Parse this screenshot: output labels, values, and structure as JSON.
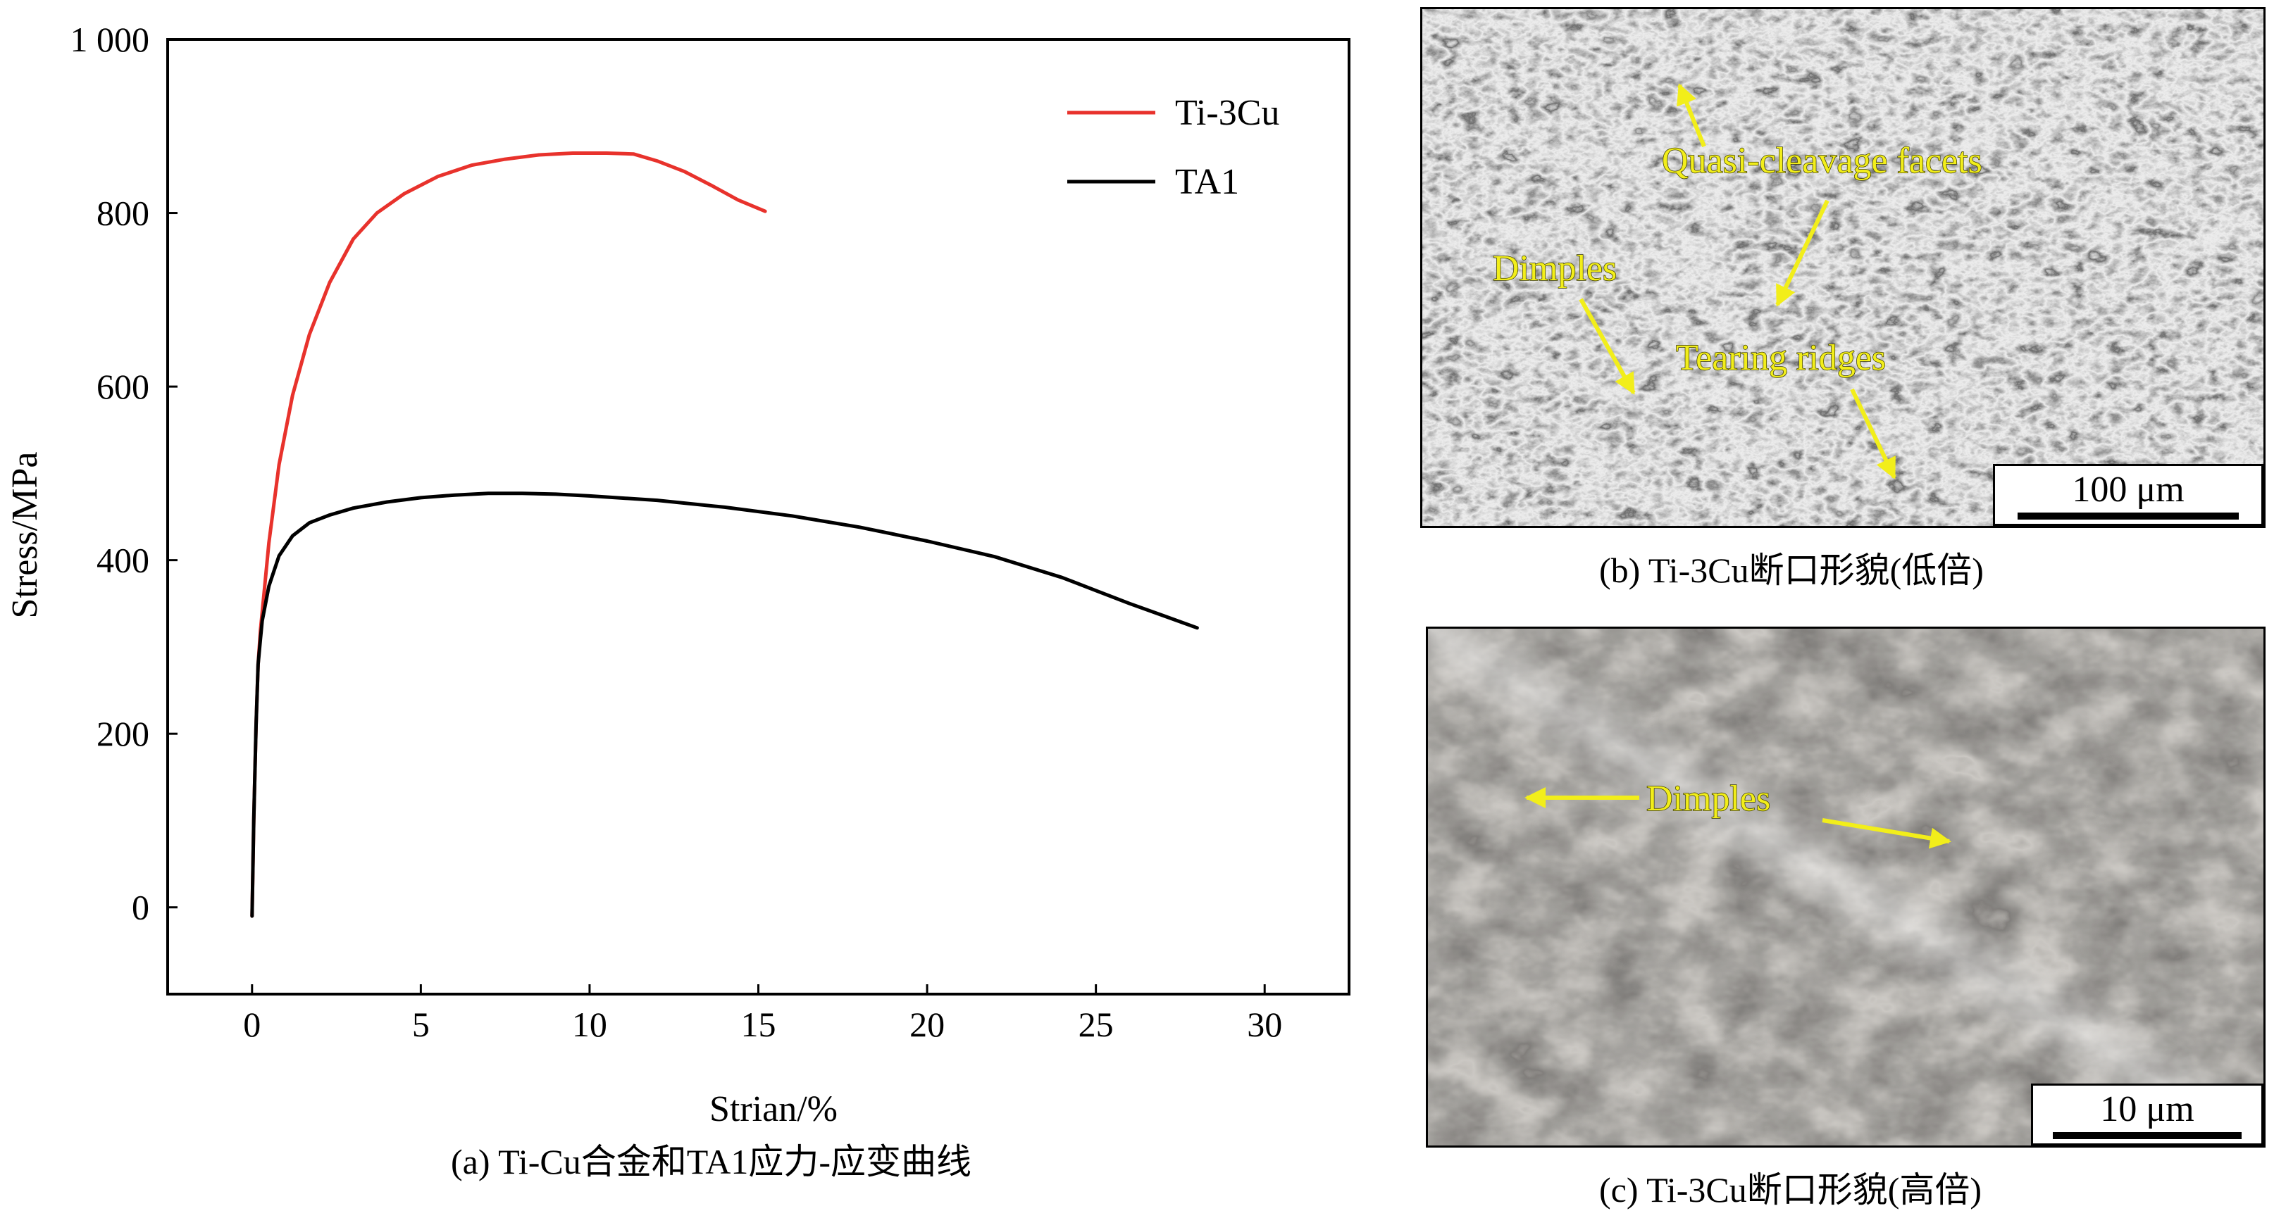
{
  "chart_data": {
    "type": "line",
    "title": "",
    "xlabel": "Strian/%",
    "ylabel": "Stress/MPa",
    "xlim": [
      -2.5,
      32.5
    ],
    "ylim": [
      -100,
      1000
    ],
    "xticks": [
      0,
      5,
      10,
      15,
      20,
      25,
      30
    ],
    "yticks": [
      0,
      200,
      400,
      600,
      800,
      1000
    ],
    "ytick_labels": [
      "0",
      "200",
      "400",
      "600",
      "800",
      "1 000"
    ],
    "grid": false,
    "legend_position": "top-right",
    "series": [
      {
        "name": "Ti-3Cu",
        "color": "#e8322c",
        "x": [
          0,
          0.05,
          0.12,
          0.18,
          0.25,
          0.3,
          0.5,
          0.8,
          1.2,
          1.7,
          2.3,
          3.0,
          3.7,
          4.5,
          5.5,
          6.5,
          7.5,
          8.5,
          9.5,
          10.5,
          11.3,
          12.0,
          12.8,
          13.6,
          14.4,
          15.2
        ],
        "y": [
          -10,
          100,
          210,
          280,
          320,
          340,
          420,
          510,
          590,
          660,
          720,
          770,
          800,
          822,
          842,
          855,
          862,
          867,
          869,
          869,
          868,
          860,
          848,
          832,
          815,
          802
        ]
      },
      {
        "name": "TA1",
        "color": "#000000",
        "x": [
          0,
          0.05,
          0.12,
          0.18,
          0.25,
          0.3,
          0.5,
          0.8,
          1.2,
          1.7,
          2.3,
          3.0,
          4.0,
          5.0,
          6.0,
          7.0,
          8.0,
          9.0,
          10.0,
          12.0,
          14.0,
          16.0,
          18.0,
          20.0,
          22.0,
          23.0,
          24.0,
          25.0,
          26.0,
          27.0,
          28.0
        ],
        "y": [
          -10,
          100,
          210,
          280,
          310,
          330,
          370,
          405,
          428,
          443,
          452,
          460,
          467,
          472,
          475,
          477,
          477,
          476,
          474,
          469,
          461,
          451,
          438,
          422,
          404,
          392,
          380,
          365,
          350,
          336,
          322
        ]
      }
    ]
  },
  "captions": {
    "a": "(a) Ti-Cu合金和TA1应力-应变曲线",
    "b": "(b) Ti-3Cu断口形貌(低倍)",
    "c": "(c) Ti-3Cu断口形貌(高倍)"
  },
  "panel_b": {
    "annotations": [
      "Quasi-cleavage facets",
      "Dimples",
      "Tearing ridges"
    ],
    "scale_bar": "100 μm",
    "annotation_color": "#f2ee1a"
  },
  "panel_c": {
    "annotations": [
      "Dimples"
    ],
    "scale_bar": "10 μm",
    "annotation_color": "#f2ee1a"
  }
}
